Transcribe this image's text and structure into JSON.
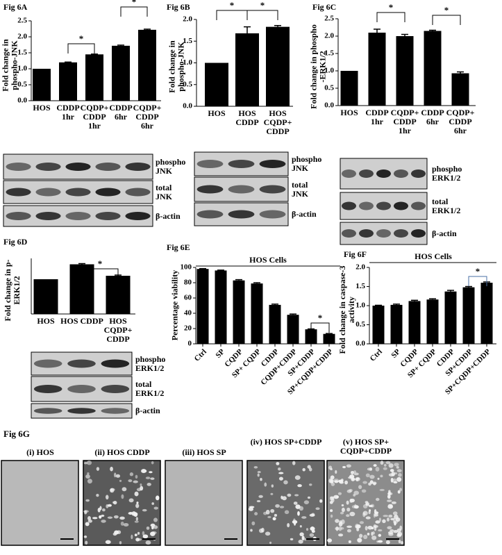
{
  "chart_data": [
    {
      "type": "bar",
      "title": "Fig 6A",
      "y_label": "Fold change in phospho-JNK",
      "categories": [
        "HOS",
        "CDDP 1hr",
        "CQDP+ CDDP 1hr",
        "CDDP 6hr",
        "CQDP+ CDDP 6hr"
      ],
      "values": [
        1.0,
        1.2,
        1.45,
        1.72,
        2.22
      ],
      "errors": [
        0,
        0.01,
        0.01,
        0.02,
        0.02
      ],
      "color": "#000000",
      "ylim": [
        0,
        2.5
      ],
      "yticks": [
        {
          "value": 0,
          "label": "0.0"
        },
        0.5,
        {
          "value": 1,
          "label": "1.0"
        },
        1.5,
        {
          "value": 2,
          "label": "2.0"
        },
        2.5
      ],
      "annotations": [
        "*",
        "*"
      ]
    },
    {
      "type": "bar",
      "title": "Fig 6B",
      "y_label": "Fold change in phospho-JNK",
      "categories": [
        "HOS",
        "HOS CDDP",
        "HOS CQDP+ CDDP"
      ],
      "values": [
        1.0,
        1.68,
        1.83
      ],
      "errors": [
        0,
        0.15,
        0.03
      ],
      "color": "#000000",
      "ylim": [
        0,
        2
      ],
      "yticks": [
        {
          "value": 0,
          "label": "0.0"
        },
        0.5,
        {
          "value": 1,
          "label": "1.0"
        },
        1.5,
        {
          "value": 2,
          "label": "2.0"
        }
      ],
      "annotations": [
        "*",
        "*"
      ]
    },
    {
      "type": "bar",
      "title": "Fig 6C",
      "y_label": "Fold change in phospho -ERK1/2",
      "categories": [
        "HOS",
        "CDDP 1hr",
        "CQDP+ CDDP 1hr",
        "CDDP 6hr",
        "CQDP+ CDDP 6hr"
      ],
      "values": [
        1.0,
        2.1,
        2.0,
        2.15,
        0.93
      ],
      "errors": [
        0,
        0.1,
        0.05,
        0.02,
        0.04
      ],
      "color": "#000000",
      "ylim": [
        0,
        2.5
      ],
      "yticks": [
        {
          "value": 0,
          "label": "0.0"
        },
        0.5,
        {
          "value": 1,
          "label": "1.0"
        },
        1.5,
        {
          "value": 2,
          "label": "2.0"
        },
        2.5
      ],
      "annotations": [
        "*",
        "*"
      ]
    },
    {
      "type": "bar",
      "title": "Fig 6D",
      "y_label": "Fold change in p-ERK1/2",
      "categories": [
        "HOS",
        "HOS CDDP",
        "HOS CQDP+ CDDP"
      ],
      "values": [
        1.0,
        1.43,
        1.1
      ],
      "errors": [
        0,
        0.02,
        0.02
      ],
      "color": "#000000",
      "ylim": [
        0,
        1.6
      ],
      "annotations": [
        "*"
      ]
    },
    {
      "type": "bar",
      "title": "Fig 6E",
      "subtitle": "HOS Cells",
      "y_label": "Percentage viability",
      "categories": [
        "Ctrl",
        "SP",
        "CQDP",
        "SP+ CQDP",
        "CDDP",
        "CQDP+CDDP",
        "SP+CDDP",
        "SP+CQDP+CDDP"
      ],
      "values": [
        98,
        96,
        83,
        79,
        51,
        38,
        19,
        13
      ],
      "errors": [
        0.5,
        0.5,
        1,
        1,
        1,
        1,
        0.5,
        0.5
      ],
      "color": "#000000",
      "ylim": [
        0,
        100
      ],
      "yticks": [
        0,
        20,
        40,
        60,
        80,
        100
      ],
      "annotations": [
        "*"
      ]
    },
    {
      "type": "bar",
      "title": "Fig 6F",
      "subtitle": "HOS Cells",
      "y_label": "Fold change in caspase-3 activity",
      "categories": [
        "Ctrl",
        "SP",
        "CQDP",
        "SP+ CQDP",
        "CDDP",
        "SP+CDDP",
        "SP+CQDP+CDDP"
      ],
      "values": [
        1.0,
        1.02,
        1.12,
        1.16,
        1.37,
        1.48,
        1.6
      ],
      "errors": [
        0.01,
        0.02,
        0.02,
        0.02,
        0.03,
        0.02,
        0.02
      ],
      "color": "#000000",
      "ylim": [
        0,
        2
      ],
      "yticks": [
        {
          "value": 0,
          "label": "0.0"
        },
        0.5,
        {
          "value": 1,
          "label": "1.0"
        },
        1.5,
        {
          "value": 2,
          "label": "2.0"
        }
      ],
      "annotations": [
        "*"
      ]
    }
  ],
  "blots": [
    {
      "rows": [
        [
          "phospho",
          "JNK"
        ],
        [
          "total",
          "JNK"
        ],
        [
          "β-actin"
        ]
      ]
    },
    {
      "rows": [
        [
          "phospho",
          "JNK"
        ],
        [
          "total",
          "JNK"
        ],
        [
          "β-actin"
        ]
      ]
    },
    {
      "rows": [
        [
          "phospho",
          "ERK1/2"
        ],
        [
          "total",
          "ERK1/2"
        ],
        [
          "β-actin"
        ]
      ]
    },
    {
      "rows": [
        [
          "phospho",
          "ERK1/2"
        ],
        [
          "total",
          "ERK1/2"
        ],
        [
          "β-actin"
        ]
      ]
    }
  ],
  "figure_g": {
    "title": "Fig 6G",
    "panels": [
      "(i) HOS",
      "(ii) HOS CDDP",
      "(iii) HOS SP",
      "(iv) HOS SP+CDDP",
      "(v) HOS SP+ CQDP+CDDP"
    ]
  }
}
